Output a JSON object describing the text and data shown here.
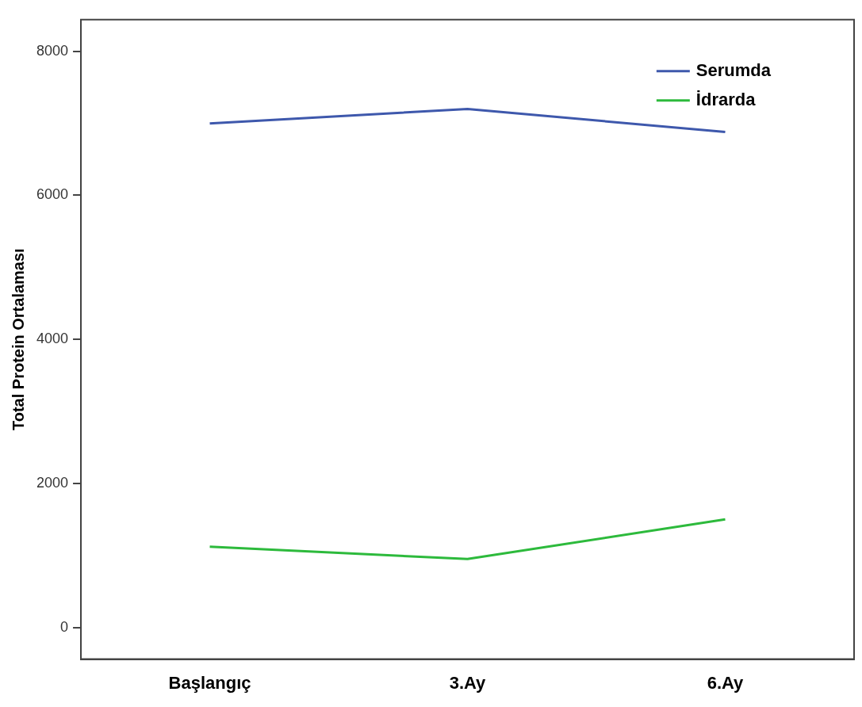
{
  "chart_data": {
    "type": "line",
    "ylabel": "Total Protein Ortalaması",
    "categories": [
      "Başlangıç",
      "3.Ay",
      "6.Ay"
    ],
    "series": [
      {
        "name": "Serumda",
        "color": "#3e58ac",
        "values": [
          7000,
          7200,
          6880
        ]
      },
      {
        "name": "İdrarda",
        "color": "#2dba3c",
        "values": [
          1120,
          950,
          1500
        ]
      }
    ],
    "ylim": [
      -440,
      8440
    ],
    "yticks": [
      0,
      2000,
      4000,
      6000,
      8000
    ],
    "grid": false,
    "legend": "top right",
    "marker": "none",
    "line_style": "solid"
  }
}
